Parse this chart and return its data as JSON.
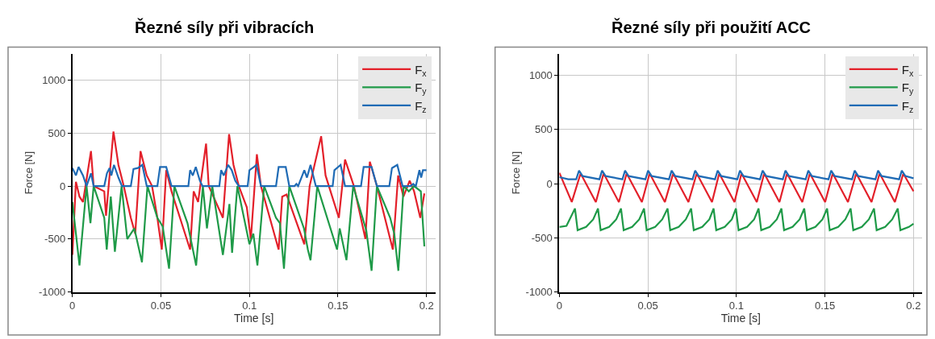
{
  "chart_data": [
    {
      "type": "line",
      "title": "Řezné síly při vibracích",
      "xlabel": "Time [s]",
      "ylabel": "Force [N]",
      "xlim": [
        0,
        0.205
      ],
      "xticks": [
        0,
        0.05,
        0.1,
        0.15,
        0.2
      ],
      "ylim": [
        -1000,
        1250
      ],
      "yticks": [
        -1000,
        -500,
        0,
        500,
        1000
      ],
      "grid": true,
      "legend": "top right",
      "line_style": "solid",
      "marker": "none",
      "series": [
        {
          "name": "F$_{x}$",
          "color": "#e3202a",
          "x": [
            0,
            0.002,
            0.004,
            0.006,
            0.0105,
            0.012,
            0.018,
            0.019,
            0.0232,
            0.026,
            0.029,
            0.033,
            0.0355,
            0.0385,
            0.042,
            0.045,
            0.048,
            0.0505,
            0.053,
            0.056,
            0.0665,
            0.0685,
            0.071,
            0.0755,
            0.077,
            0.085,
            0.0885,
            0.091,
            0.094,
            0.0985,
            0.1008,
            0.1042,
            0.1065,
            0.1165,
            0.1185,
            0.121,
            0.131,
            0.134,
            0.1405,
            0.143,
            0.1505,
            0.154,
            0.159,
            0.1655,
            0.168,
            0.172,
            0.181,
            0.184,
            0.187,
            0.1905,
            0.193,
            0.1965,
            0.1988
          ],
          "values": [
            -650,
            40,
            -100,
            -150,
            330,
            0,
            -50,
            -280,
            515,
            200,
            0,
            -300,
            -450,
            330,
            100,
            0,
            -300,
            -600,
            150,
            -50,
            -600,
            -50,
            -150,
            400,
            0,
            -300,
            490,
            200,
            0,
            -200,
            -500,
            300,
            0,
            -600,
            -100,
            -80,
            -550,
            0,
            470,
            100,
            -300,
            250,
            0,
            -500,
            230,
            0,
            -600,
            100,
            -100,
            50,
            -50,
            -300,
            -70
          ]
        },
        {
          "name": "F$_{y}$",
          "color": "#1f9a48",
          "x": [
            0,
            0.004,
            0.008,
            0.0102,
            0.012,
            0.018,
            0.0194,
            0.0217,
            0.024,
            0.0278,
            0.031,
            0.035,
            0.0393,
            0.0424,
            0.048,
            0.051,
            0.0546,
            0.0576,
            0.065,
            0.0699,
            0.0737,
            0.076,
            0.079,
            0.085,
            0.0887,
            0.0902,
            0.0932,
            0.1,
            0.1022,
            0.1045,
            0.1083,
            0.115,
            0.1172,
            0.1195,
            0.1225,
            0.1308,
            0.133,
            0.1345,
            0.1383,
            0.1495,
            0.151,
            0.1548,
            0.1586,
            0.166,
            0.169,
            0.172,
            0.1795,
            0.1818,
            0.1841,
            0.1871,
            0.19,
            0.193,
            0.1968,
            0.1988
          ],
          "values": [
            -150,
            -750,
            0,
            -350,
            0,
            -300,
            -600,
            -100,
            -620,
            0,
            -500,
            -400,
            -720,
            0,
            -300,
            -380,
            -780,
            0,
            -350,
            -750,
            0,
            -400,
            0,
            -650,
            -170,
            -630,
            0,
            -550,
            -450,
            -750,
            0,
            -300,
            -350,
            -780,
            0,
            -400,
            -600,
            -700,
            0,
            -600,
            -400,
            -700,
            0,
            -420,
            -800,
            0,
            -300,
            -450,
            -800,
            0,
            -50,
            0,
            -50,
            -570
          ]
        },
        {
          "name": "F$_{z}$",
          "color": "#1f6bb5",
          "x": [
            0,
            0.002,
            0.0035,
            0.006,
            0.008,
            0.0105,
            0.012,
            0.018,
            0.0195,
            0.021,
            0.022,
            0.0235,
            0.026,
            0.028,
            0.033,
            0.0345,
            0.037,
            0.0395,
            0.042,
            0.048,
            0.0495,
            0.053,
            0.056,
            0.0655,
            0.0665,
            0.068,
            0.0697,
            0.072,
            0.0735,
            0.083,
            0.084,
            0.0855,
            0.088,
            0.09,
            0.092,
            0.094,
            0.099,
            0.1,
            0.1025,
            0.104,
            0.1065,
            0.115,
            0.1165,
            0.1205,
            0.1225,
            0.1255,
            0.1265,
            0.1275,
            0.131,
            0.1325,
            0.1345,
            0.1375,
            0.147,
            0.148,
            0.1515,
            0.154,
            0.163,
            0.1645,
            0.169,
            0.172,
            0.179,
            0.1805,
            0.1835,
            0.1865,
            0.191,
            0.1925,
            0.194,
            0.196,
            0.197,
            0.198,
            0.2
          ],
          "values": [
            170,
            100,
            180,
            100,
            0,
            120,
            0,
            0,
            120,
            170,
            100,
            200,
            80,
            0,
            0,
            160,
            170,
            200,
            0,
            0,
            180,
            180,
            0,
            0,
            150,
            100,
            180,
            50,
            0,
            0,
            150,
            100,
            200,
            150,
            50,
            0,
            0,
            150,
            180,
            200,
            0,
            0,
            180,
            180,
            0,
            0,
            20,
            0,
            150,
            80,
            200,
            0,
            0,
            150,
            200,
            0,
            0,
            180,
            180,
            0,
            0,
            170,
            200,
            0,
            0,
            20,
            0,
            150,
            80,
            150,
            150
          ]
        }
      ]
    },
    {
      "type": "line",
      "title": "Řezné síly při použití ACC",
      "xlabel": "Time [s]",
      "ylabel": "Force [N]",
      "xlim": [
        0,
        0.205
      ],
      "xticks": [
        0,
        0.05,
        0.1,
        0.15,
        0.2
      ],
      "ylim": [
        -1000,
        1200
      ],
      "yticks": [
        -1000,
        -500,
        0,
        500,
        1000
      ],
      "grid": true,
      "legend": "top right",
      "line_style": "solid",
      "marker": "none",
      "series": [
        {
          "name": "F$_{x}$",
          "color": "#e3202a",
          "x": [
            0,
            0.007,
            0.0119,
            0.0131,
            0.0206,
            0.0249,
            0.0261,
            0.0336,
            0.0379,
            0.0391,
            0.0466,
            0.0509,
            0.0521,
            0.0596,
            0.0642,
            0.0654,
            0.0729,
            0.0775,
            0.0787,
            0.0862,
            0.0902,
            0.0914,
            0.0989,
            0.1028,
            0.104,
            0.1115,
            0.1156,
            0.1168,
            0.1243,
            0.1285,
            0.1297,
            0.1372,
            0.1414,
            0.1426,
            0.1501,
            0.1543,
            0.1555,
            0.163,
            0.1676,
            0.1688,
            0.1763,
            0.1808,
            0.182,
            0.1895,
            0.1942,
            0.1954,
            0.2
          ],
          "values": [
            100,
            -170,
            90,
            60,
            -170,
            90,
            60,
            -170,
            90,
            60,
            -170,
            90,
            60,
            -170,
            90,
            60,
            -170,
            90,
            60,
            -170,
            90,
            60,
            -170,
            90,
            60,
            -170,
            90,
            60,
            -170,
            90,
            60,
            -170,
            90,
            60,
            -170,
            90,
            60,
            -170,
            90,
            60,
            -170,
            90,
            60,
            -170,
            90,
            60,
            -70
          ]
        },
        {
          "name": "F$_{y}$",
          "color": "#1f9a48",
          "x": [
            0,
            0.004,
            0.0088,
            0.0103,
            0.0151,
            0.0191,
            0.0218,
            0.0233,
            0.0281,
            0.0321,
            0.0348,
            0.0363,
            0.0411,
            0.0451,
            0.0478,
            0.0493,
            0.0541,
            0.0581,
            0.0611,
            0.0626,
            0.0674,
            0.0714,
            0.0744,
            0.0759,
            0.0807,
            0.0847,
            0.0871,
            0.0886,
            0.0934,
            0.0974,
            0.0997,
            0.1012,
            0.106,
            0.11,
            0.1125,
            0.114,
            0.1188,
            0.1228,
            0.1254,
            0.1269,
            0.1317,
            0.1357,
            0.1383,
            0.1398,
            0.1446,
            0.1486,
            0.1512,
            0.1527,
            0.1575,
            0.1615,
            0.1645,
            0.166,
            0.1708,
            0.1748,
            0.1777,
            0.1792,
            0.184,
            0.188,
            0.1911,
            0.1926,
            0.1974,
            0.2
          ],
          "values": [
            -400,
            -390,
            -230,
            -430,
            -400,
            -330,
            -230,
            -430,
            -400,
            -330,
            -230,
            -430,
            -400,
            -330,
            -230,
            -430,
            -400,
            -330,
            -230,
            -430,
            -400,
            -330,
            -230,
            -430,
            -400,
            -330,
            -230,
            -430,
            -400,
            -330,
            -230,
            -430,
            -400,
            -330,
            -230,
            -430,
            -400,
            -330,
            -230,
            -430,
            -400,
            -330,
            -230,
            -430,
            -400,
            -330,
            -230,
            -430,
            -400,
            -330,
            -230,
            -430,
            -400,
            -330,
            -230,
            -430,
            -400,
            -330,
            -230,
            -430,
            -400,
            -370
          ]
        },
        {
          "name": "F$_{z}$",
          "color": "#1f6bb5",
          "x": [
            0,
            0.005,
            0.0095,
            0.0111,
            0.0131,
            0.0226,
            0.0241,
            0.0261,
            0.0356,
            0.0371,
            0.0391,
            0.0486,
            0.0501,
            0.0521,
            0.0619,
            0.0634,
            0.0654,
            0.0752,
            0.0767,
            0.0787,
            0.0879,
            0.0894,
            0.0914,
            0.1005,
            0.102,
            0.104,
            0.1133,
            0.1148,
            0.1168,
            0.1262,
            0.1277,
            0.1297,
            0.1391,
            0.1406,
            0.1426,
            0.152,
            0.1535,
            0.1555,
            0.1653,
            0.1668,
            0.1688,
            0.1785,
            0.18,
            0.182,
            0.1919,
            0.1934,
            0.1954,
            0.2
          ],
          "values": [
            60,
            40,
            40,
            120,
            70,
            40,
            120,
            70,
            40,
            120,
            70,
            40,
            120,
            70,
            40,
            120,
            70,
            40,
            120,
            70,
            40,
            120,
            70,
            40,
            120,
            70,
            40,
            120,
            70,
            40,
            120,
            70,
            40,
            120,
            70,
            40,
            120,
            70,
            40,
            120,
            70,
            40,
            120,
            70,
            40,
            120,
            70,
            50
          ]
        }
      ]
    }
  ]
}
